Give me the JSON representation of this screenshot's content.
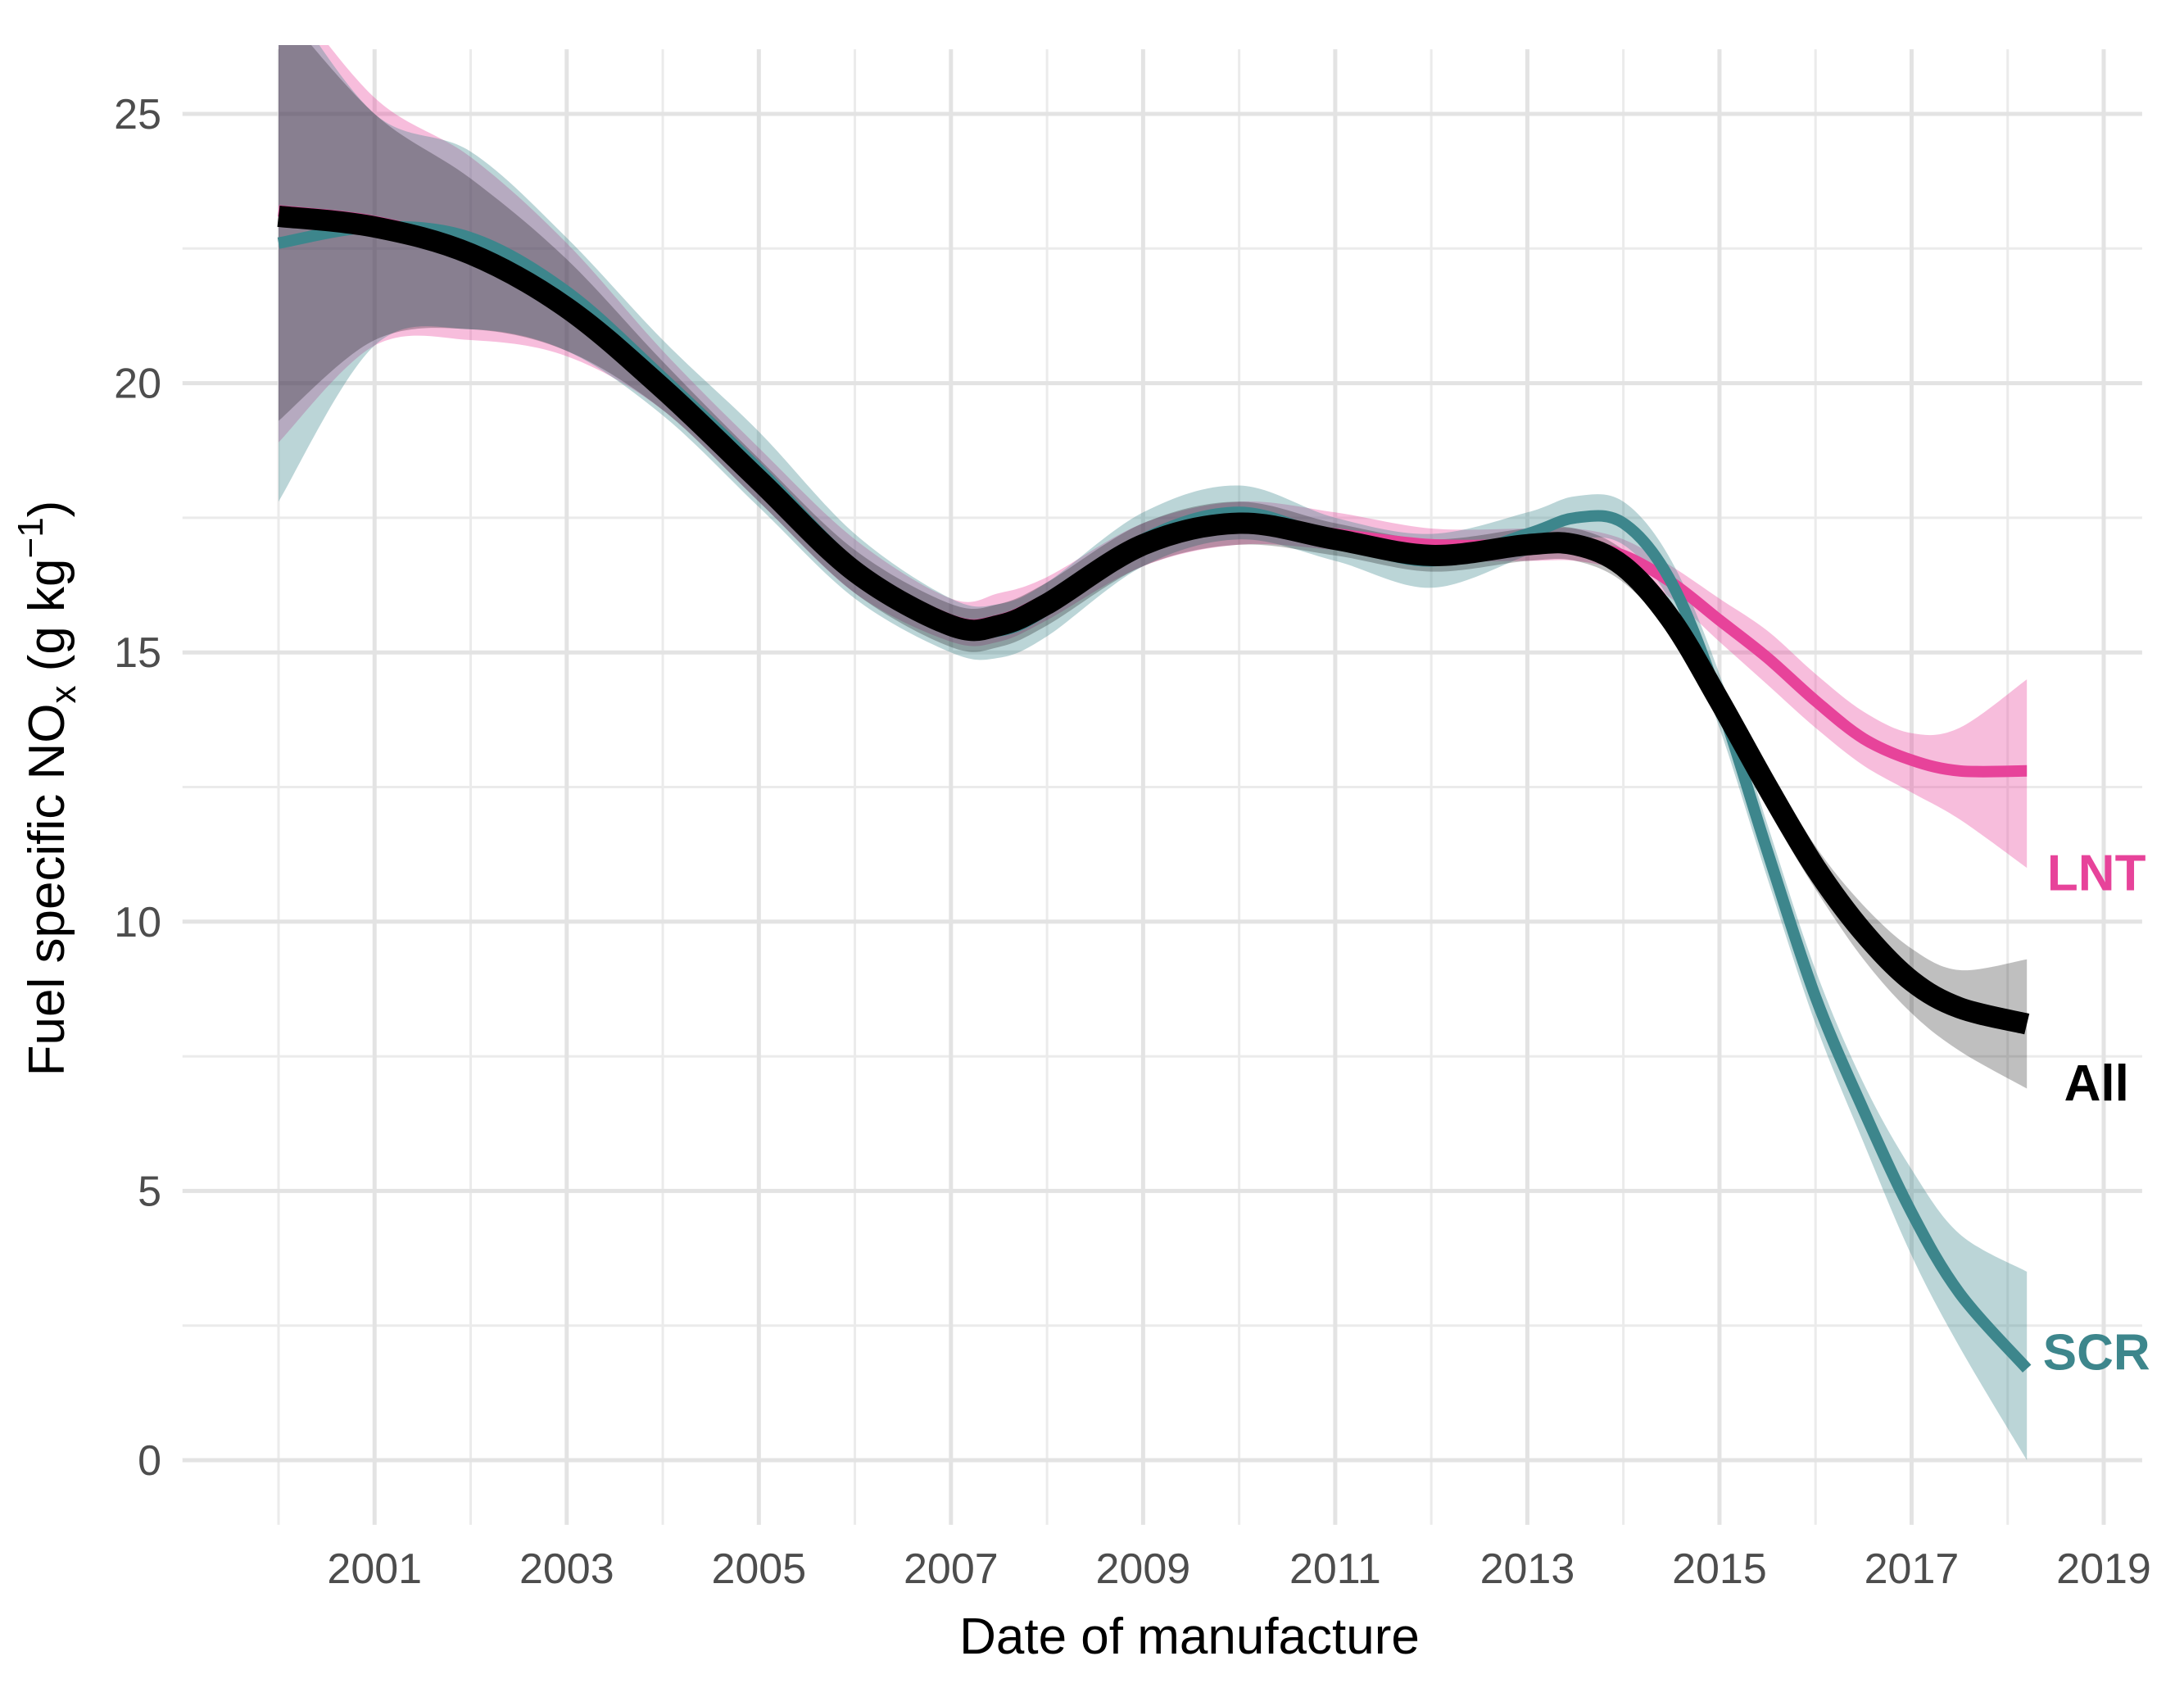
{
  "chart_data": {
    "type": "line",
    "title": "",
    "xlabel": "Date of manufacture",
    "ylabel": {
      "prefix": "Fuel specific NO",
      "subscript": "x",
      "unit_open": " (g kg",
      "superscript": "−1",
      "unit_close": ")"
    },
    "xlim": [
      1999.0,
      2019.4
    ],
    "ylim": [
      -1.2,
      26.2
    ],
    "x_ticks": [
      2001,
      2003,
      2005,
      2007,
      2009,
      2011,
      2013,
      2015,
      2017,
      2019
    ],
    "x_tick_labels": [
      "2001",
      "2003",
      "2005",
      "2007",
      "2009",
      "2011",
      "2013",
      "2015",
      "2017",
      "2019"
    ],
    "y_ticks": [
      0,
      5,
      10,
      15,
      20,
      25
    ],
    "y_tick_labels": [
      "0",
      "5",
      "10",
      "15",
      "20",
      "25"
    ],
    "grid": true,
    "legend": "direct labels at line ends",
    "series": [
      {
        "name": "LNT",
        "color": "#e7439a",
        "band_opacity": 0.35,
        "x": [
          2000.0,
          2001.0,
          2002.0,
          2003.0,
          2004.0,
          2005.0,
          2006.0,
          2007.0,
          2007.5,
          2008.0,
          2009.0,
          2010.0,
          2011.0,
          2012.0,
          2013.0,
          2013.5,
          2014.0,
          2014.5,
          2015.0,
          2015.5,
          2016.0,
          2016.5,
          2017.0,
          2017.5,
          2018.2
        ],
        "y": [
          23.2,
          23.0,
          22.5,
          21.5,
          20.0,
          18.3,
          16.6,
          15.6,
          15.6,
          16.0,
          17.0,
          17.4,
          17.2,
          17.0,
          17.0,
          17.0,
          16.8,
          16.3,
          15.6,
          14.9,
          14.1,
          13.4,
          13.0,
          12.8,
          12.8
        ],
        "lower": [
          18.9,
          20.7,
          20.8,
          20.5,
          19.5,
          17.8,
          16.1,
          15.2,
          15.2,
          15.6,
          16.6,
          17.0,
          16.9,
          16.7,
          16.7,
          16.7,
          16.5,
          16.0,
          15.2,
          14.4,
          13.6,
          12.9,
          12.4,
          11.9,
          11.0
        ],
        "upper": [
          27.5,
          25.3,
          24.2,
          22.6,
          20.6,
          18.8,
          17.1,
          16.0,
          16.1,
          16.4,
          17.4,
          17.8,
          17.6,
          17.3,
          17.3,
          17.3,
          17.1,
          16.6,
          16.0,
          15.4,
          14.6,
          13.9,
          13.5,
          13.6,
          14.5
        ],
        "label": "LNT",
        "label_y": 10.9
      },
      {
        "name": "SCR",
        "color": "#3d868c",
        "band_opacity": 0.35,
        "x": [
          2000.0,
          2001.0,
          2002.0,
          2003.0,
          2004.0,
          2005.0,
          2006.0,
          2007.0,
          2007.5,
          2008.0,
          2009.0,
          2010.0,
          2011.0,
          2012.0,
          2013.0,
          2013.5,
          2014.0,
          2014.5,
          2015.0,
          2015.5,
          2016.0,
          2016.5,
          2017.0,
          2017.5,
          2018.2
        ],
        "y": [
          22.6,
          22.9,
          22.7,
          21.7,
          20.1,
          18.4,
          16.6,
          15.5,
          15.4,
          15.8,
          17.1,
          17.6,
          17.1,
          16.7,
          17.2,
          17.5,
          17.4,
          16.3,
          14.1,
          11.3,
          8.6,
          6.5,
          4.6,
          3.1,
          1.7
        ],
        "lower": [
          17.8,
          20.7,
          21.0,
          20.6,
          19.4,
          17.7,
          16.0,
          15.0,
          14.9,
          15.3,
          16.6,
          17.1,
          16.7,
          16.2,
          16.8,
          17.1,
          17.0,
          15.9,
          13.6,
          10.8,
          8.1,
          5.9,
          3.8,
          2.1,
          0.0
        ],
        "upper": [
          27.4,
          25.0,
          24.3,
          22.7,
          20.8,
          19.1,
          17.2,
          16.0,
          15.9,
          16.3,
          17.6,
          18.1,
          17.5,
          17.2,
          17.6,
          17.9,
          17.8,
          16.7,
          14.6,
          11.8,
          9.1,
          7.0,
          5.4,
          4.2,
          3.5
        ],
        "label": "SCR",
        "label_y": 2.0
      },
      {
        "name": "All",
        "color": "#000000",
        "band_opacity": 0.25,
        "x": [
          2000.0,
          2001.0,
          2002.0,
          2003.0,
          2004.0,
          2005.0,
          2006.0,
          2007.0,
          2007.5,
          2008.0,
          2009.0,
          2010.0,
          2011.0,
          2012.0,
          2013.0,
          2013.5,
          2014.0,
          2014.5,
          2015.0,
          2015.5,
          2016.0,
          2016.5,
          2017.0,
          2017.5,
          2018.2
        ],
        "y": [
          23.1,
          22.9,
          22.4,
          21.4,
          19.9,
          18.2,
          16.5,
          15.5,
          15.5,
          15.9,
          17.0,
          17.4,
          17.1,
          16.8,
          17.0,
          17.0,
          16.6,
          15.6,
          14.1,
          12.5,
          11.0,
          9.8,
          8.9,
          8.4,
          8.1
        ],
        "lower": [
          19.3,
          20.8,
          21.0,
          20.6,
          19.5,
          17.8,
          16.1,
          15.1,
          15.1,
          15.5,
          16.6,
          17.0,
          16.8,
          16.5,
          16.7,
          16.7,
          16.3,
          15.3,
          13.7,
          12.1,
          10.6,
          9.3,
          8.3,
          7.6,
          6.9
        ],
        "upper": [
          27.0,
          25.0,
          23.8,
          22.3,
          20.4,
          18.6,
          16.9,
          15.9,
          15.9,
          16.3,
          17.4,
          17.8,
          17.4,
          17.1,
          17.3,
          17.3,
          16.9,
          15.9,
          14.5,
          12.9,
          11.4,
          10.3,
          9.5,
          9.1,
          9.3
        ],
        "label": "All",
        "label_y": 7.0
      }
    ]
  }
}
